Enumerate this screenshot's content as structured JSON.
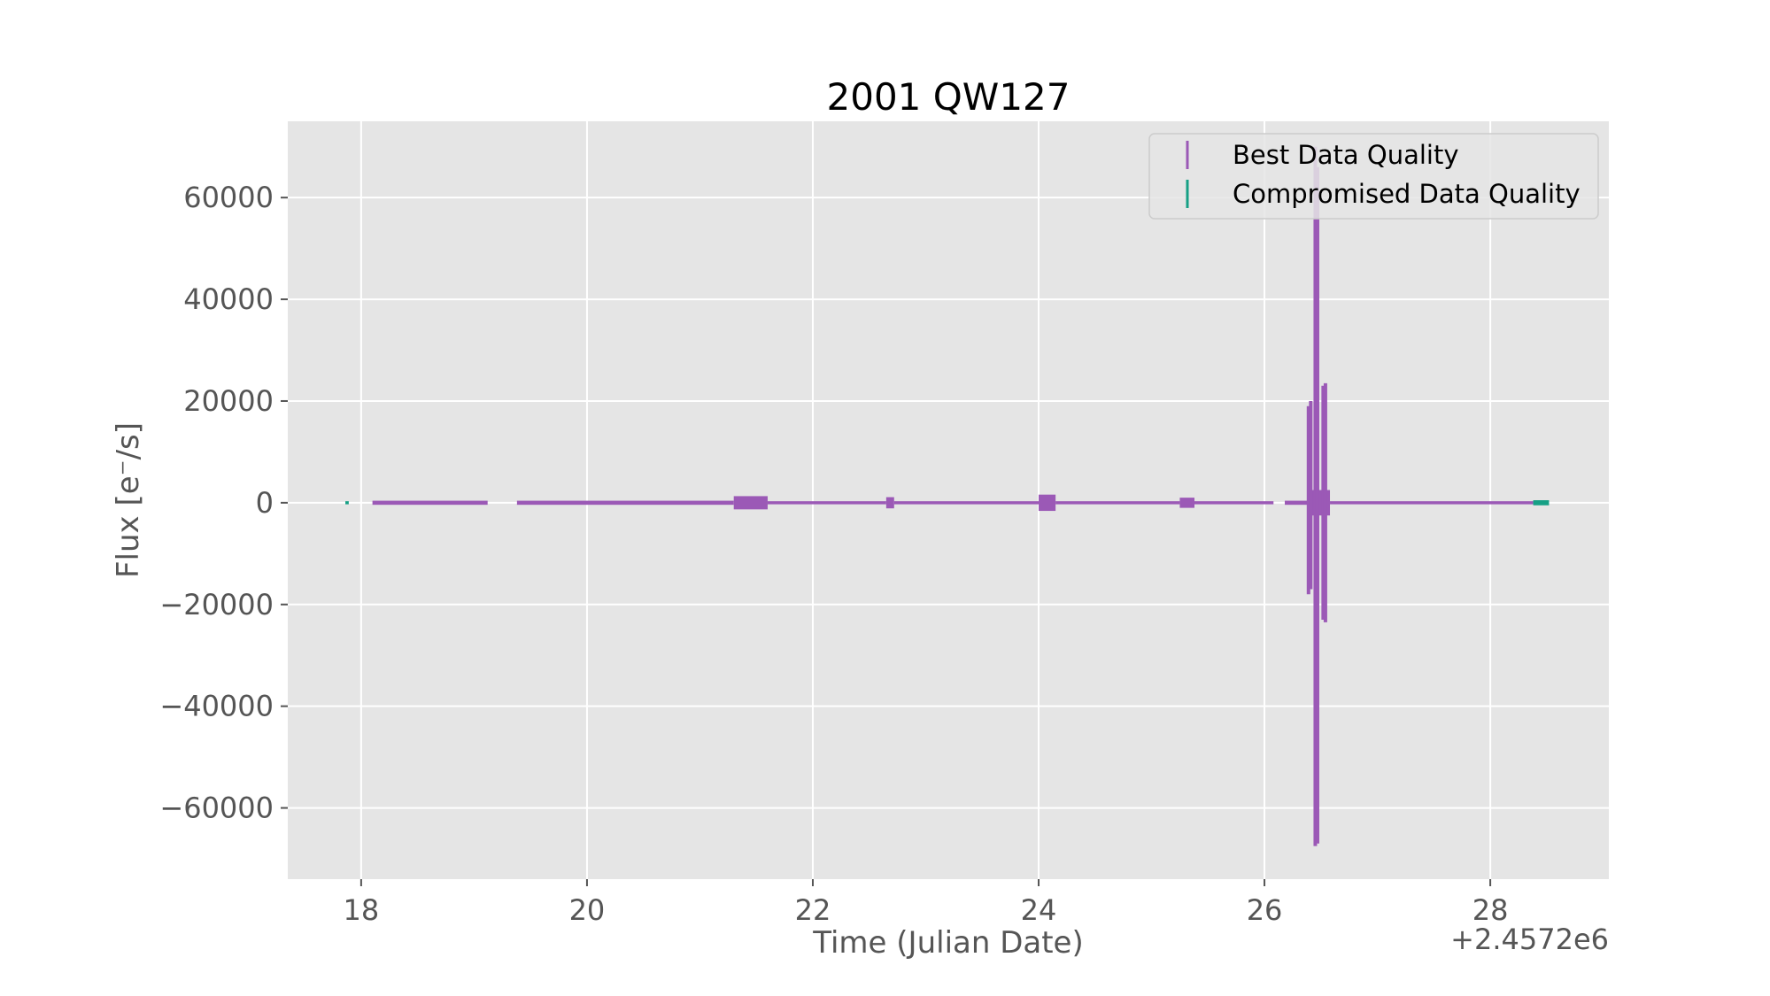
{
  "chart_data": {
    "type": "scatter",
    "title": "2001 QW127",
    "xlabel": "Time (Julian Date)",
    "ylabel": "Flux [e⁻/s]",
    "x_offset_label": "+2.4572e6",
    "xlim": [
      17.35,
      29.05
    ],
    "ylim": [
      -74000,
      75000
    ],
    "x_ticks": [
      18,
      20,
      22,
      24,
      26,
      28
    ],
    "x_tick_labels": [
      "18",
      "20",
      "22",
      "24",
      "26",
      "28"
    ],
    "y_ticks": [
      60000,
      40000,
      20000,
      0,
      -20000,
      -40000,
      -60000
    ],
    "y_tick_labels": [
      "60000",
      "40000",
      "20000",
      "0",
      "−20000",
      "−40000",
      "−60000"
    ],
    "grid": true,
    "legend_position": "top-right",
    "background": "#e5e5e5",
    "series": [
      {
        "name": "Best Data Quality",
        "color": "#9b59b6",
        "segments": [
          {
            "x": [
              18.1,
              19.12
            ],
            "amp": 400
          },
          {
            "x": [
              19.38,
              21.3
            ],
            "amp": 400
          },
          {
            "x": [
              21.3,
              21.6
            ],
            "amp": 1300
          },
          {
            "x": [
              21.6,
              22.65
            ],
            "amp": 300
          },
          {
            "x": [
              22.65,
              22.72
            ],
            "amp": 1100
          },
          {
            "x": [
              22.72,
              24.0
            ],
            "amp": 300
          },
          {
            "x": [
              24.0,
              24.15
            ],
            "amp": 1600
          },
          {
            "x": [
              24.15,
              25.25
            ],
            "amp": 300
          },
          {
            "x": [
              25.25,
              25.38
            ],
            "amp": 1000
          },
          {
            "x": [
              25.38,
              26.08
            ],
            "amp": 300
          },
          {
            "x": [
              26.18,
              26.38
            ],
            "amp": 400
          },
          {
            "x": [
              26.38,
              26.58
            ],
            "amp": 2500
          },
          {
            "x": [
              26.58,
              28.38
            ],
            "amp": 300
          }
        ],
        "spikes": [
          {
            "x": 26.39,
            "y_low": -18000,
            "y_high": 19000
          },
          {
            "x": 26.41,
            "y_low": -17000,
            "y_high": 20000
          },
          {
            "x": 26.45,
            "y_low": -67500,
            "y_high": 70000
          },
          {
            "x": 26.47,
            "y_low": -67000,
            "y_high": 66000
          },
          {
            "x": 26.52,
            "y_low": -23000,
            "y_high": 23000
          },
          {
            "x": 26.54,
            "y_low": -23500,
            "y_high": 23500
          }
        ]
      },
      {
        "name": "Compromised Data Quality",
        "color": "#16a085",
        "segments": [
          {
            "x": [
              17.86,
              17.89
            ],
            "amp": 300
          },
          {
            "x": [
              28.38,
              28.52
            ],
            "amp": 500
          }
        ],
        "spikes": []
      }
    ]
  }
}
